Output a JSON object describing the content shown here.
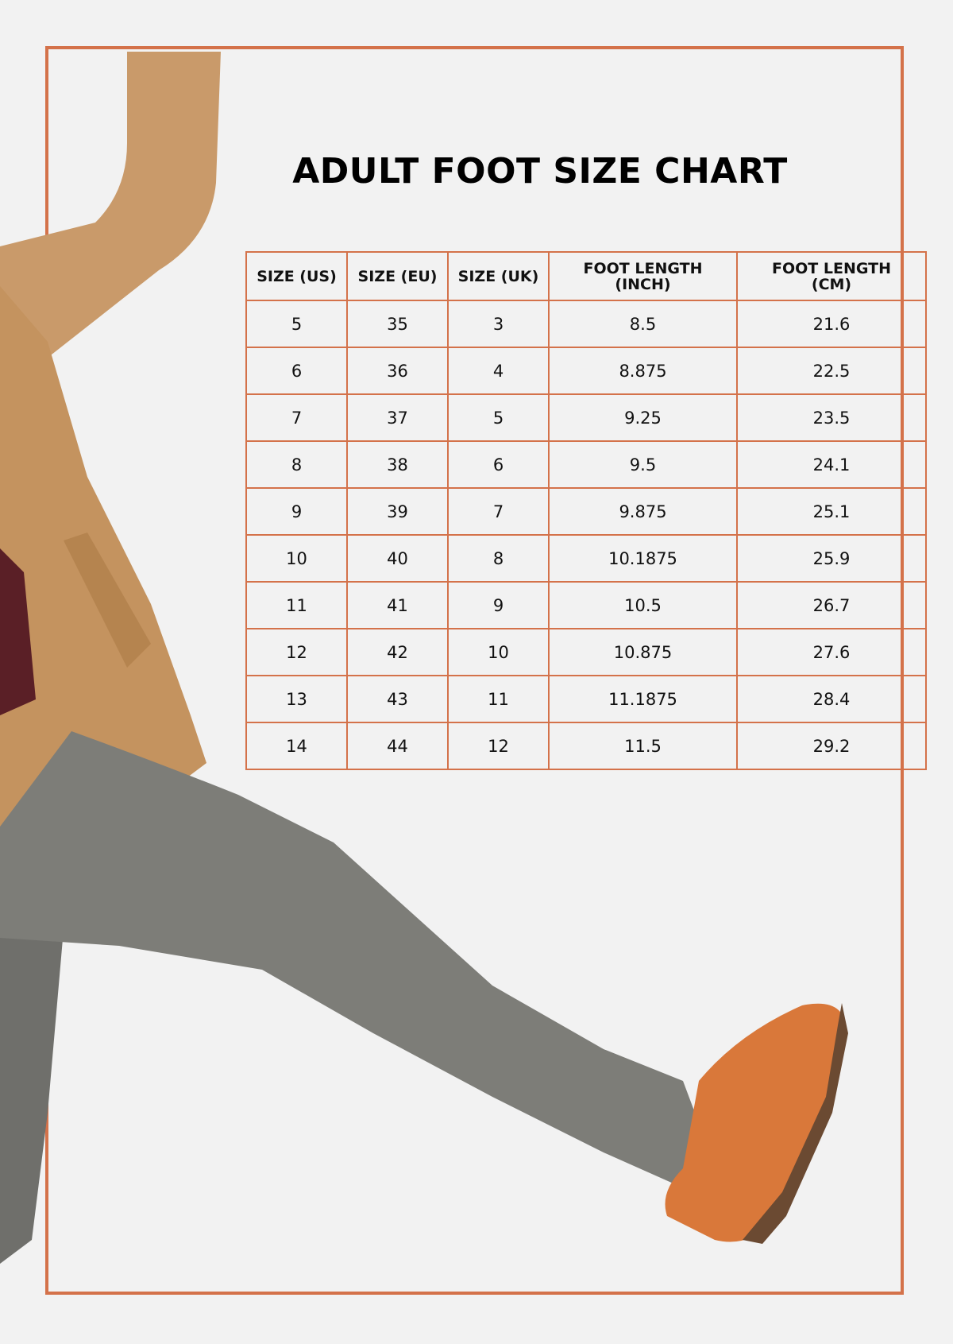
{
  "title": "ADULT FOOT SIZE CHART",
  "colors": {
    "accent": "#d4724a",
    "background": "#f2f2f2",
    "coat": "#c99a6a",
    "trousers": "#7d7d78",
    "shoe": "#d9783a"
  },
  "illustration": "person-kicking-leg",
  "table": {
    "headers": [
      "SIZE (US)",
      "SIZE (EU)",
      "SIZE (UK)",
      "FOOT LENGTH (INCH)",
      "FOOT LENGTH (CM)"
    ],
    "rows": [
      [
        "5",
        "35",
        "3",
        "8.5",
        "21.6"
      ],
      [
        "6",
        "36",
        "4",
        "8.875",
        "22.5"
      ],
      [
        "7",
        "37",
        "5",
        "9.25",
        "23.5"
      ],
      [
        "8",
        "38",
        "6",
        "9.5",
        "24.1"
      ],
      [
        "9",
        "39",
        "7",
        "9.875",
        "25.1"
      ],
      [
        "10",
        "40",
        "8",
        "10.1875",
        "25.9"
      ],
      [
        "11",
        "41",
        "9",
        "10.5",
        "26.7"
      ],
      [
        "12",
        "42",
        "10",
        "10.875",
        "27.6"
      ],
      [
        "13",
        "43",
        "11",
        "11.1875",
        "28.4"
      ],
      [
        "14",
        "44",
        "12",
        "11.5",
        "29.2"
      ]
    ]
  }
}
